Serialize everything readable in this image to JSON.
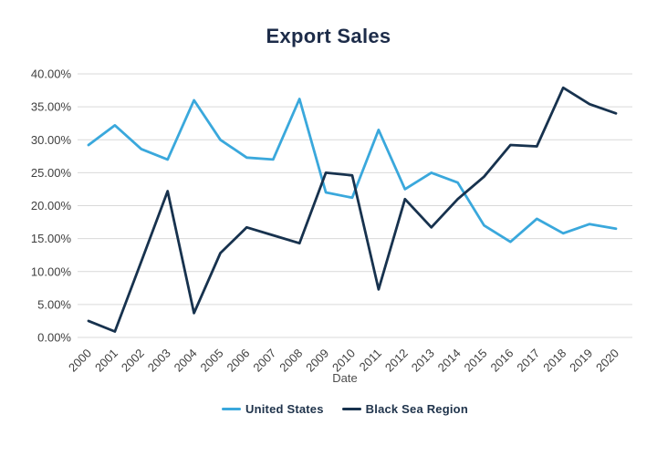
{
  "colors": {
    "background": "#ffffff",
    "title_text": "#1d2c49",
    "axis_text": "#3f3f3f",
    "axis_title_text": "#4d4d4d",
    "legend_text": "#20344c",
    "gridline": "#d9d9d9",
    "united_states_line": "#3aa8dc",
    "black_sea_line": "#17324e"
  },
  "chart_data": {
    "type": "line",
    "title": "Export Sales",
    "xlabel": "Date",
    "ylabel": "",
    "ylim": [
      0,
      40
    ],
    "grid": "horizontal",
    "legend_position": "bottom",
    "categories": [
      "2000",
      "2001",
      "2002",
      "2003",
      "2004",
      "2005",
      "2006",
      "2007",
      "2008",
      "2009",
      "2010",
      "2011",
      "2012",
      "2013",
      "2014",
      "2015",
      "2016",
      "2017",
      "2018",
      "2019",
      "2020"
    ],
    "y_ticks": [
      {
        "value": 0,
        "label": "0.00%"
      },
      {
        "value": 5,
        "label": "5.00%"
      },
      {
        "value": 10,
        "label": "10.00%"
      },
      {
        "value": 15,
        "label": "15.00%"
      },
      {
        "value": 20,
        "label": "20.00%"
      },
      {
        "value": 25,
        "label": "25.00%"
      },
      {
        "value": 30,
        "label": "30.00%"
      },
      {
        "value": 35,
        "label": "35.00%"
      },
      {
        "value": 40,
        "label": "40.00%"
      }
    ],
    "series": [
      {
        "id": "united-states",
        "name": "United States",
        "color": "#3aa8dc",
        "values": [
          29.2,
          32.2,
          28.6,
          27.0,
          36.0,
          30.0,
          27.3,
          27.0,
          36.2,
          22.0,
          21.2,
          31.5,
          22.5,
          25.0,
          23.5,
          17.0,
          14.5,
          18.0,
          15.8,
          17.2,
          16.5
        ]
      },
      {
        "id": "black-sea-region",
        "name": "Black Sea Region",
        "color": "#17324e",
        "values": [
          2.5,
          0.9,
          11.5,
          22.2,
          3.7,
          12.8,
          16.7,
          15.5,
          14.3,
          25.0,
          24.6,
          7.3,
          21.0,
          16.7,
          21.0,
          24.4,
          29.2,
          29.0,
          37.9,
          35.4,
          34.0
        ]
      }
    ]
  }
}
